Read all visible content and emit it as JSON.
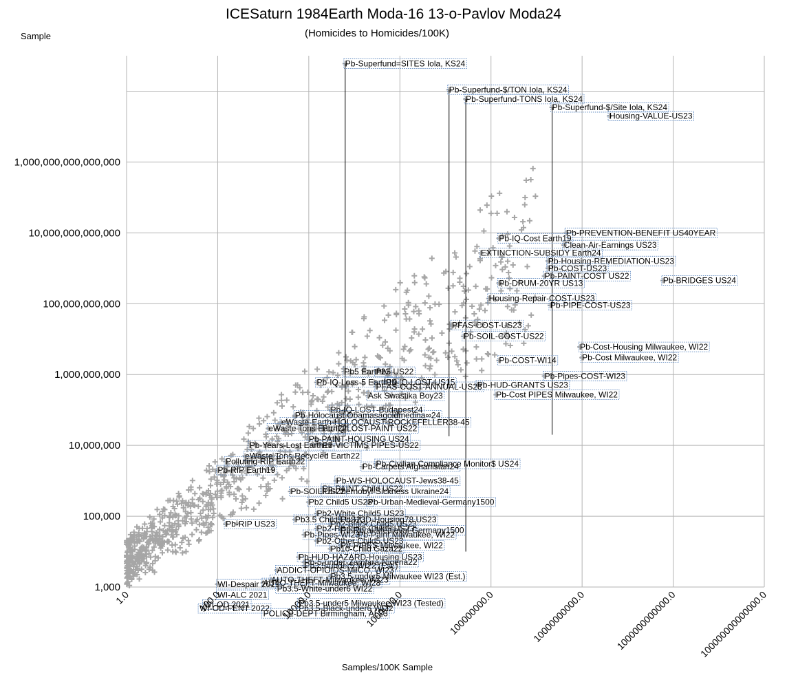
{
  "chart_data": {
    "type": "scatter",
    "title": "ICESaturn 1984Earth Moda-16 13-o-Pavlov Moda24",
    "subtitle": "(Homicides to Homicides/100K)",
    "xlabel": "Samples/100K Sample",
    "ylabel": "Sample",
    "x_scale": "log",
    "y_scale": "log",
    "xlim": [
      1,
      100000000000000.0
    ],
    "ylim": [
      1000,
      1e+18
    ],
    "grid": true,
    "legend": "none",
    "marker": "plus",
    "marker_color": "#a6a6a6",
    "x_ticks": [
      1,
      100,
      10000,
      1000000,
      100000000,
      10000000000,
      1000000000000,
      100000000000000
    ],
    "x_tick_labels": [
      "1.0",
      "100.0",
      "10000.0",
      "1000000.0",
      "100000000.0",
      "10000000000.0",
      "1000000000000.0",
      "100000000000000.0"
    ],
    "y_ticks": [
      1000,
      100000,
      10000000,
      1000000000,
      100000000000,
      10000000000000,
      1000000000000000,
      100000000000000000,
      1000000000000000000
    ],
    "y_tick_labels": [
      "1,000",
      "100,000",
      "10,000,000",
      "1,000,000,000",
      "100,000,000,000",
      "10,000,000,000,000",
      "1,000,000,000,000,000",
      "",
      ""
    ],
    "annotations": [
      {
        "text": "Pb-Superfund=SITES Iola, KS24",
        "x": 63000.0,
        "y": 6e+17,
        "leader_to_y": 18000000.0
      },
      {
        "text": "Pb-Superfund-$/TON Iola, KS24",
        "x": 12000000.0,
        "y": 1.1e+17,
        "leader_to_y": 18000000.0
      },
      {
        "text": "Pb-Superfund-TONS Iola, KS24",
        "x": 28000000.0,
        "y": 6e+16,
        "leader_to_y": 10000.0
      },
      {
        "text": "Pb-Superfund-$/Site Iola, KS24",
        "x": 2200000000.0,
        "y": 3.5e+16,
        "leader_to_y": 20000000.0
      },
      {
        "text": "Housing-VALUE-US23",
        "x": 40000000000.0,
        "y": 2e+16
      },
      {
        "text": "Pb-PREVENTION-BENEFIT US40YEAR",
        "x": 4500000000.0,
        "y": 10000000000000.0
      },
      {
        "text": "Pb-IQ-Cost Earth19",
        "x": 150000000.0,
        "y": 7000000000000.0
      },
      {
        "text": "Clean-Air-Earnings US23",
        "x": 4000000000.0,
        "y": 4500000000000.0
      },
      {
        "text": "EXTINCTION-SUBSIDY Earth24",
        "x": 60000000.0,
        "y": 2700000000000.0
      },
      {
        "text": "Pb-Housing-REMEDIATION-US23",
        "x": 1800000000.0,
        "y": 1600000000000.0
      },
      {
        "text": "Pb-COST-US23",
        "x": 1800000000.0,
        "y": 1000000000000.0
      },
      {
        "text": "Pb-PAINT-COST US22",
        "x": 1500000000.0,
        "y": 600000000000.0
      },
      {
        "text": "Pb-BRIDGES US24",
        "x": 600000000000.0,
        "y": 450000000000.0
      },
      {
        "text": "Pb-DRUM-20YR US13",
        "x": 150000000.0,
        "y": 380000000000.0
      },
      {
        "text": "Housing-Repair-COST-US23",
        "x": 90000000.0,
        "y": 140000000000.0
      },
      {
        "text": "Pb-PIPE-COST-US23",
        "x": 2000000000.0,
        "y": 90000000000.0
      },
      {
        "text": "PFAS-COST-US23",
        "x": 14000000.0,
        "y": 25000000000.0
      },
      {
        "text": "Pb-SOIL-COST-US22",
        "x": 25000000.0,
        "y": 12000000000.0
      },
      {
        "text": "Pb-Cost-Housing Milwaukee, WI22",
        "x": 9000000000.0,
        "y": 6000000000.0
      },
      {
        "text": "Pb-Cost Milwaukee, WI22",
        "x": 10000000000.0,
        "y": 3000000000.0
      },
      {
        "text": "Pb-COST-WI14",
        "x": 150000000.0,
        "y": 2500000000.0
      },
      {
        "text": "Pb5 Earth22",
        "x": 60000.0,
        "y": 1200000000.0
      },
      {
        "text": "Pb5 US22",
        "x": 300000.0,
        "y": 1200000000.0
      },
      {
        "text": "Pb-Pipes-COST-WI23",
        "x": 1500000000.0,
        "y": 900000000.0
      },
      {
        "text": "Pb-IQ-Loss-5 Earth19",
        "x": 15000.0,
        "y": 600000000.0
      },
      {
        "text": "Pb-IQ-LOST-US15",
        "x": 500000.0,
        "y": 600000000.0
      },
      {
        "text": "PFAS-COST-ANNUAL-US23",
        "x": 300000.0,
        "y": 450000000.0
      },
      {
        "text": "Pb-HUD-GRANTS US23",
        "x": 50000000.0,
        "y": 500000000.0
      },
      {
        "text": "Ask Swastika Boy23",
        "x": 200000.0,
        "y": 250000000.0
      },
      {
        "text": "Pb-Cost PIPES Milwaukee, WI22",
        "x": 130000000.0,
        "y": 270000000.0
      },
      {
        "text": "Pb-IQ-LOST-Budapest24",
        "x": 30000.0,
        "y": 100000000.0
      },
      {
        "text": "Pb-Holocaust Obamasagoldmedina∞24",
        "x": 5000.0,
        "y": 70000000.0
      },
      {
        "text": "eWaste-Earth-HOLOCAUST-ROCKEFELLER38-45",
        "x": 2500.0,
        "y": 45000000.0
      },
      {
        "text": "eWaste Tons Earth22",
        "x": 1300.0,
        "y": 30000000.0
      },
      {
        "text": "Pb-IQ-LOST-PAINT US22",
        "x": 20000.0,
        "y": 30000000.0
      },
      {
        "text": "Pb-PAINT-HOUSING US24",
        "x": 10000.0,
        "y": 15000000.0
      },
      {
        "text": "Pb-Years-Lost Earth17",
        "x": 500,
        "y": 10000000.0
      },
      {
        "text": "Pb-VICTIMS PIPES-US22",
        "x": 20000.0,
        "y": 10000000.0
      },
      {
        "text": "eWaste Tons Recycled Earth22",
        "x": 400,
        "y": 5000000.0
      },
      {
        "text": "Polluting-RIP Earth22",
        "x": 150,
        "y": 3500000.0
      },
      {
        "text": "Pb-RIP Earth19",
        "x": 100,
        "y": 2000000.0
      },
      {
        "text": "Pb-Civilian Compliance Monitor$ US24",
        "x": 300000.0,
        "y": 3000000.0
      },
      {
        "text": "Pb-Carpets Afghanistan24",
        "x": 150000.0,
        "y": 2500000.0
      },
      {
        "text": "Pb-WS-HOLOCAUST-Jews38-45",
        "x": 40000.0,
        "y": 1000000.0
      },
      {
        "text": "Pb-PAINT Child US22",
        "x": 20000.0,
        "y": 600000.0
      },
      {
        "text": "Pb-SOIL US22",
        "x": 4000.0,
        "y": 500000.0
      },
      {
        "text": "Pb-Chernobyl-Sickness Ukraine24",
        "x": 20000.0,
        "y": 500000.0
      },
      {
        "text": "Pb2 Child5 US23",
        "x": 10000.0,
        "y": 250000.0
      },
      {
        "text": "Pb-Urban-Medieval-Germany1500",
        "x": 200000.0,
        "y": 250000.0
      },
      {
        "text": "Pb2-White Child5 US23",
        "x": 15000.0,
        "y": 120000.0
      },
      {
        "text": "Pb3.5 Child5 US23",
        "x": 5000.0,
        "y": 80000.0
      },
      {
        "text": "Pb-HUD-Housing78 US23",
        "x": 50000.0,
        "y": 80000.0
      },
      {
        "text": "Pb-RIP US23",
        "x": 150,
        "y": 60000.0
      },
      {
        "text": "Pb2-Black Child5 US23",
        "x": 30000.0,
        "y": 60000.0
      },
      {
        "text": "Pb2-Hispanic Child5 US23",
        "x": 15000.0,
        "y": 45000.0
      },
      {
        "text": "Pb-Rural-Medieval-Germany1500",
        "x": 50000.0,
        "y": 40000.0
      },
      {
        "text": "Pb-Pipes-WI23",
        "x": 8000.0,
        "y": 30000.0
      },
      {
        "text": "Pb-Paint Milwaukee, WI22",
        "x": 120000.0,
        "y": 30000.0
      },
      {
        "text": "Pb2-Other Child5 US23",
        "x": 15000.0,
        "y": 20000.0
      },
      {
        "text": "Pb-PIPES Milwaukee, WI22",
        "x": 50000.0,
        "y": 15000.0
      },
      {
        "text": "Pb10-Child Gaza22",
        "x": 30000.0,
        "y": 12000.0
      },
      {
        "text": "Pb-HUD-HAZARD-Housing US23",
        "x": 6000.0,
        "y": 7000.0
      },
      {
        "text": "Pb-5-under-Zamfara-Nigeria22",
        "x": 8000.0,
        "y": 5000.0
      },
      {
        "text": "Pb3.5-under5 WI22 (Est.)",
        "x": 8000.0,
        "y": 4000.0
      },
      {
        "text": "ADDICT-OPIOIDS-MilCO, WI23",
        "x": 2000.0,
        "y": 3000.0
      },
      {
        "text": "Pb3.5-under5 Milwaukee WI23 (Est.)",
        "x": 30000.0,
        "y": 2000.0
      },
      {
        "text": "AUTO-THEFT-Milwaukee, WI23",
        "x": 1500.0,
        "y": 1600.0
      },
      {
        "text": "WI-Despair 2019",
        "x": 100,
        "y": 1200.0
      },
      {
        "text": "AUTO-THEFT-Milwaukee, WI28",
        "x": 1000.0,
        "y": 1300.0
      },
      {
        "text": "Pb3.5-White-under6 WI22",
        "x": 2000.0,
        "y": 900
      },
      {
        "text": "WI-ALC 2021",
        "x": 100,
        "y": 600
      },
      {
        "text": "Pb3.5-under5 Milwaukee WI23 (Tested)",
        "x": 6000.0,
        "y": 350
      },
      {
        "text": "WI-OD 2021",
        "x": 50,
        "y": 320
      },
      {
        "text": "WI-OD-FENT 2022",
        "x": 40,
        "y": 250
      },
      {
        "text": "Pb3.5-Black-under6 WI22",
        "x": 6000.0,
        "y": 250
      },
      {
        "text": "POLICE-DEPT Birmingham, AL23",
        "x": 1000.0,
        "y": 180
      }
    ]
  }
}
